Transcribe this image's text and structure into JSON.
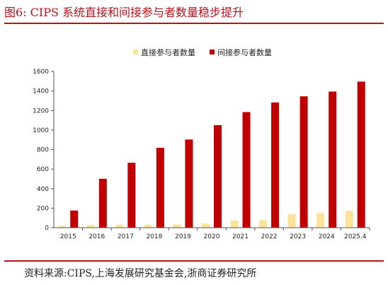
{
  "header": {
    "title": "图6:   CIPS 系统直接和间接参与者数量稳步提升"
  },
  "footer": {
    "source": "资料来源:CIPS,上海发展研究基金会,浙商证券研究所"
  },
  "colors": {
    "direct": "#fde29a",
    "indirect": "#c00000",
    "accent": "#b4121d"
  },
  "chart_data": {
    "type": "bar",
    "categories": [
      "2015",
      "2016",
      "2017",
      "2018",
      "2019",
      "2020",
      "2021",
      "2022",
      "2023",
      "2024",
      "2025.4"
    ],
    "series": [
      {
        "name": "直接参与者数量",
        "values": [
          19,
          28,
          31,
          31,
          33,
          42,
          75,
          77,
          139,
          151,
          174
        ]
      },
      {
        "name": "间接参与者数量",
        "values": [
          176,
          501,
          665,
          818,
          903,
          1050,
          1184,
          1283,
          1345,
          1394,
          1496
        ]
      }
    ],
    "ylim": [
      0,
      1600
    ],
    "yticks": [
      0,
      200,
      400,
      600,
      800,
      1000,
      1200,
      1400,
      1600
    ],
    "legend": "top-center",
    "grid": false
  }
}
